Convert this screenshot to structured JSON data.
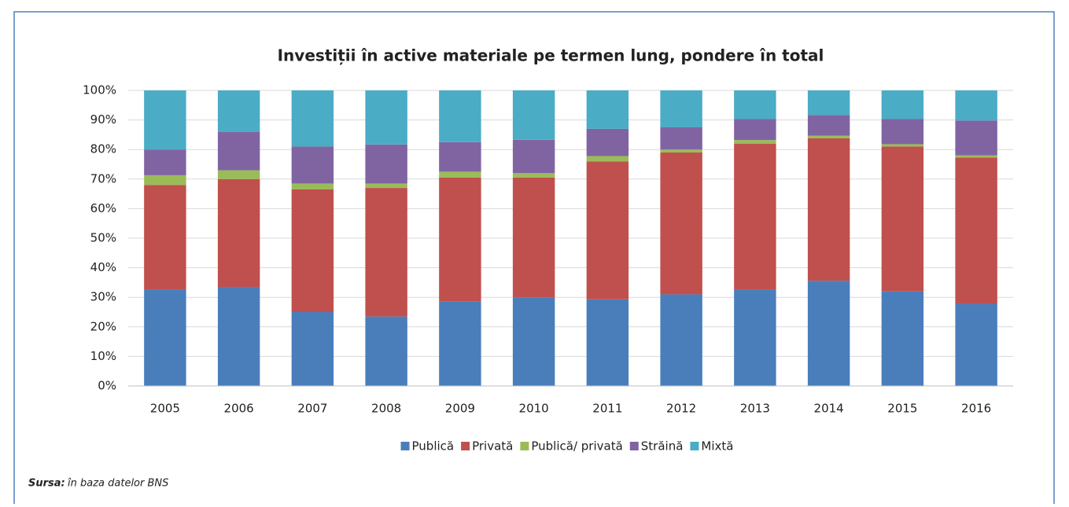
{
  "chart_data": {
    "type": "stacked_bar",
    "title": "Investiții în active materiale pe termen lung, pondere în total",
    "categories": [
      "2005",
      "2006",
      "2007",
      "2008",
      "2009",
      "2010",
      "2011",
      "2012",
      "2013",
      "2014",
      "2015",
      "2016"
    ],
    "series": [
      {
        "name": "Publică",
        "color": "#4a7ebb",
        "values": [
          32.7,
          33.5,
          25,
          23.5,
          28.5,
          30,
          29.3,
          31,
          32.6,
          35.6,
          32,
          27.8
        ]
      },
      {
        "name": "Privată",
        "color": "#c0504d",
        "values": [
          35.3,
          36.5,
          41.5,
          43.5,
          42,
          40.5,
          46.7,
          48,
          49.4,
          48.2,
          49,
          49.5
        ]
      },
      {
        "name": "Publică/ privată",
        "color": "#9bbb59",
        "values": [
          3.3,
          3,
          2,
          1.5,
          2,
          1.5,
          1.8,
          1,
          1.2,
          0.9,
          0.8,
          0.7
        ]
      },
      {
        "name": "Străină",
        "color": "#8064a2",
        "values": [
          8.7,
          13,
          12.5,
          13.2,
          10,
          11.3,
          9.2,
          7.5,
          7.1,
          7,
          8.5,
          11.8
        ]
      },
      {
        "name": "Mixtă",
        "color": "#4bacc6",
        "values": [
          20,
          14,
          19,
          18.3,
          17.5,
          16.7,
          13,
          12.5,
          9.7,
          8.3,
          9.7,
          10.2
        ]
      }
    ],
    "ylim": [
      0,
      100
    ],
    "yticks": [
      {
        "value": 0,
        "label": "0%"
      },
      {
        "value": 10,
        "label": "10%"
      },
      {
        "value": 20,
        "label": "20%"
      },
      {
        "value": 30,
        "label": "30%"
      },
      {
        "value": 40,
        "label": "40%"
      },
      {
        "value": 50,
        "label": "50%"
      },
      {
        "value": 60,
        "label": "60%"
      },
      {
        "value": 70,
        "label": "70%"
      },
      {
        "value": 80,
        "label": "80%"
      },
      {
        "value": 90,
        "label": "90%"
      },
      {
        "value": 100,
        "label": "100%"
      }
    ],
    "grid": true,
    "legend": "bottom",
    "source": {
      "label": "Sursa:",
      "text": "în baza datelor BNS"
    }
  }
}
